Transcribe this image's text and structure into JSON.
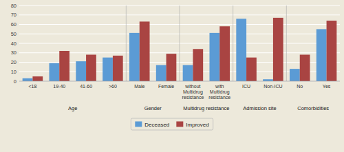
{
  "chart_data": {
    "type": "bar",
    "categories": [
      "<18",
      "19-40",
      "41-60",
      ">60",
      "Male",
      "Female",
      "without\nMultidrug\nresistance",
      "with\nMultidrug\nresistance",
      "ICU",
      "Non-ICU",
      "No",
      "Yes"
    ],
    "series": [
      {
        "name": "Deceased",
        "color": "#5b9bd5",
        "values": [
          3,
          19,
          21,
          25,
          51,
          17,
          17,
          51,
          66,
          2,
          13,
          55
        ]
      },
      {
        "name": "Improved",
        "color": "#a94442",
        "values": [
          5,
          32,
          28,
          27,
          63,
          29,
          34,
          58,
          25,
          67,
          28,
          64
        ]
      }
    ],
    "annotations": [
      {
        "text": "Age",
        "categories": [
          "<18",
          "19-40",
          "41-60",
          ">60"
        ]
      },
      {
        "text": "Gender",
        "categories": [
          "Male",
          "Female"
        ]
      },
      {
        "text": "Multidrug resistance",
        "categories": [
          "without\nMultidrug\nresistance",
          "with\nMultidrug\nresistance"
        ]
      },
      {
        "text": "Admission site",
        "categories": [
          "ICU",
          "Non-ICU"
        ]
      },
      {
        "text": "Comorbidities",
        "categories": [
          "No",
          "Yes"
        ]
      }
    ],
    "ylim": [
      0,
      80
    ],
    "yticks": [
      0,
      10,
      20,
      30,
      40,
      50,
      60,
      70,
      80
    ],
    "grid": true,
    "legend": "bottom"
  }
}
